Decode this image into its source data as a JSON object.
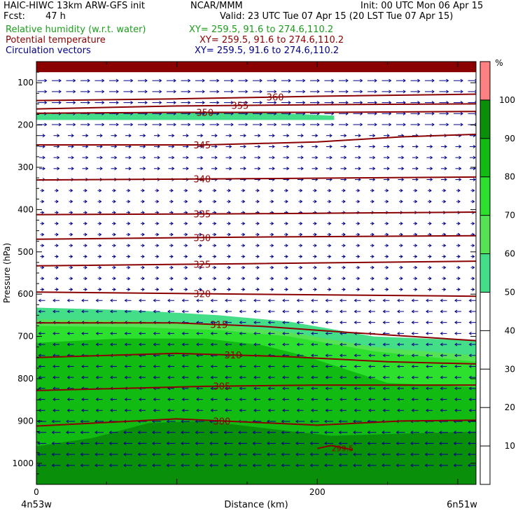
{
  "header": {
    "model_line": "HAIC-HIWC 13km ARW-GFS init",
    "center": "NCAR/MMM",
    "init": "Init: 00 UTC Mon 06 Apr 15",
    "fcst_label": "Fcst:",
    "fcst_value": "47 h",
    "valid": "Valid: 23 UTC Tue 07 Apr 15 (20 LST Tue 07 Apr 15)",
    "fields": [
      {
        "name": "Relative humidity (w.r.t. water)",
        "xy": "XY= 259.5, 91.6 to 274.6,110.2",
        "color": "#1a9e1a"
      },
      {
        "name": "Potential temperature",
        "xy": "XY= 259.5, 91.6 to 274.6,110.2",
        "color": "#8b0000"
      },
      {
        "name": "Circulation vectors",
        "xy": "XY= 259.5, 91.6 to 274.6,110.2",
        "color": "#00008b"
      }
    ]
  },
  "chart_data": {
    "type": "heatmap",
    "title": "",
    "xlabel": "Distance (km)",
    "ylabel": "Pressure (hPa)",
    "xlim": [
      0,
      313
    ],
    "ylim": [
      1050,
      50
    ],
    "x_ticks": [
      0,
      200
    ],
    "x_end_labels": [
      "4n53w",
      "6n51w"
    ],
    "y_ticks": [
      100,
      200,
      300,
      400,
      500,
      600,
      700,
      800,
      900,
      1000
    ],
    "colorbar": {
      "unit": "%",
      "ticks": [
        10,
        20,
        30,
        40,
        50,
        60,
        70,
        80,
        90,
        100
      ],
      "bands": [
        {
          "from": 50,
          "to": 60,
          "color": "#44dd88"
        },
        {
          "from": 60,
          "to": 70,
          "color": "#55e355"
        },
        {
          "from": 70,
          "to": 80,
          "color": "#2ee02e"
        },
        {
          "from": 80,
          "to": 90,
          "color": "#11bb11"
        },
        {
          "from": 90,
          "to": 100,
          "color": "#0a8f0a"
        },
        {
          "from": 100,
          "to": 110,
          "color": "#ff8080"
        }
      ]
    },
    "rh_regions": [
      {
        "level": 50,
        "top": [
          [
            0,
            632
          ],
          [
            70,
            638
          ],
          [
            130,
            650
          ],
          [
            180,
            665
          ],
          [
            240,
            700
          ],
          [
            313,
            710
          ]
        ],
        "bottom": 1050
      },
      {
        "level": 60,
        "top": [
          [
            0,
            660
          ],
          [
            70,
            663
          ],
          [
            130,
            672
          ],
          [
            180,
            690
          ],
          [
            240,
            725
          ],
          [
            313,
            745
          ]
        ],
        "bottom": 1050
      },
      {
        "level": 70,
        "top": [
          [
            0,
            675
          ],
          [
            70,
            678
          ],
          [
            130,
            685
          ],
          [
            180,
            700
          ],
          [
            240,
            735
          ],
          [
            313,
            760
          ]
        ],
        "bottom": 1050
      },
      {
        "level": 80,
        "top": [
          [
            0,
            715
          ],
          [
            60,
            705
          ],
          [
            120,
            705
          ],
          [
            160,
            720
          ],
          [
            190,
            745
          ],
          [
            250,
            810
          ],
          [
            313,
            820
          ]
        ],
        "bottom": 1050
      },
      {
        "level": 90,
        "top": [
          [
            0,
            960
          ],
          [
            40,
            940
          ],
          [
            80,
            905
          ],
          [
            120,
            900
          ],
          [
            170,
            920
          ],
          [
            210,
            935
          ],
          [
            260,
            930
          ],
          [
            313,
            925
          ]
        ],
        "bottom": 1050
      },
      {
        "level": 100,
        "top": [
          [
            0,
            50
          ],
          [
            313,
            50
          ]
        ],
        "bottom": 75
      },
      {
        "level": 50,
        "top": [
          [
            0,
            172
          ],
          [
            90,
            172
          ],
          [
            160,
            170
          ],
          [
            212,
            178
          ]
        ],
        "bottom": 188
      }
    ],
    "theta_contours": [
      {
        "label": "360",
        "label_x": 170,
        "points": [
          [
            0,
            142
          ],
          [
            100,
            138
          ],
          [
            200,
            132
          ],
          [
            313,
            127
          ]
        ]
      },
      {
        "label": "355",
        "label_x": 145,
        "points": [
          [
            0,
            162
          ],
          [
            100,
            155
          ],
          [
            200,
            152
          ],
          [
            313,
            150
          ]
        ]
      },
      {
        "label": "350",
        "label_x": 120,
        "points": [
          [
            0,
            172
          ],
          [
            100,
            170
          ],
          [
            200,
            170
          ],
          [
            313,
            168
          ]
        ]
      },
      {
        "label": "345",
        "label_x": 118,
        "points": [
          [
            0,
            247
          ],
          [
            120,
            247
          ],
          [
            200,
            240
          ],
          [
            260,
            228
          ],
          [
            313,
            222
          ]
        ]
      },
      {
        "label": "340",
        "label_x": 118,
        "points": [
          [
            0,
            330
          ],
          [
            150,
            327
          ],
          [
            313,
            323
          ]
        ]
      },
      {
        "label": "335",
        "label_x": 118,
        "points": [
          [
            0,
            412
          ],
          [
            150,
            410
          ],
          [
            313,
            406
          ]
        ]
      },
      {
        "label": "330",
        "label_x": 118,
        "points": [
          [
            0,
            470
          ],
          [
            150,
            465
          ],
          [
            313,
            462
          ]
        ]
      },
      {
        "label": "325",
        "label_x": 118,
        "points": [
          [
            0,
            533
          ],
          [
            150,
            528
          ],
          [
            313,
            522
          ]
        ]
      },
      {
        "label": "320",
        "label_x": 118,
        "points": [
          [
            0,
            595
          ],
          [
            150,
            600
          ],
          [
            313,
            605
          ]
        ]
      },
      {
        "label": "315",
        "label_x": 130,
        "points": [
          [
            0,
            668
          ],
          [
            100,
            668
          ],
          [
            160,
            676
          ],
          [
            220,
            690
          ],
          [
            313,
            710
          ]
        ]
      },
      {
        "label": "310",
        "label_x": 140,
        "points": [
          [
            0,
            750
          ],
          [
            100,
            740
          ],
          [
            180,
            748
          ],
          [
            250,
            760
          ],
          [
            313,
            765
          ]
        ]
      },
      {
        "label": "305",
        "label_x": 132,
        "points": [
          [
            0,
            828
          ],
          [
            120,
            818
          ],
          [
            200,
            815
          ],
          [
            313,
            815
          ]
        ]
      },
      {
        "label": "300",
        "label_x": 132,
        "points": [
          [
            0,
            912
          ],
          [
            100,
            895
          ],
          [
            200,
            910
          ],
          [
            260,
            900
          ],
          [
            313,
            898
          ]
        ]
      },
      {
        "label": "299.5",
        "label_x": 218,
        "points": [
          [
            200,
            965
          ],
          [
            210,
            958
          ],
          [
            225,
            968
          ]
        ]
      }
    ],
    "vectors": {
      "upper_levels_direction": "east",
      "lower_levels_direction": "west",
      "transition_pressure": 600
    }
  }
}
